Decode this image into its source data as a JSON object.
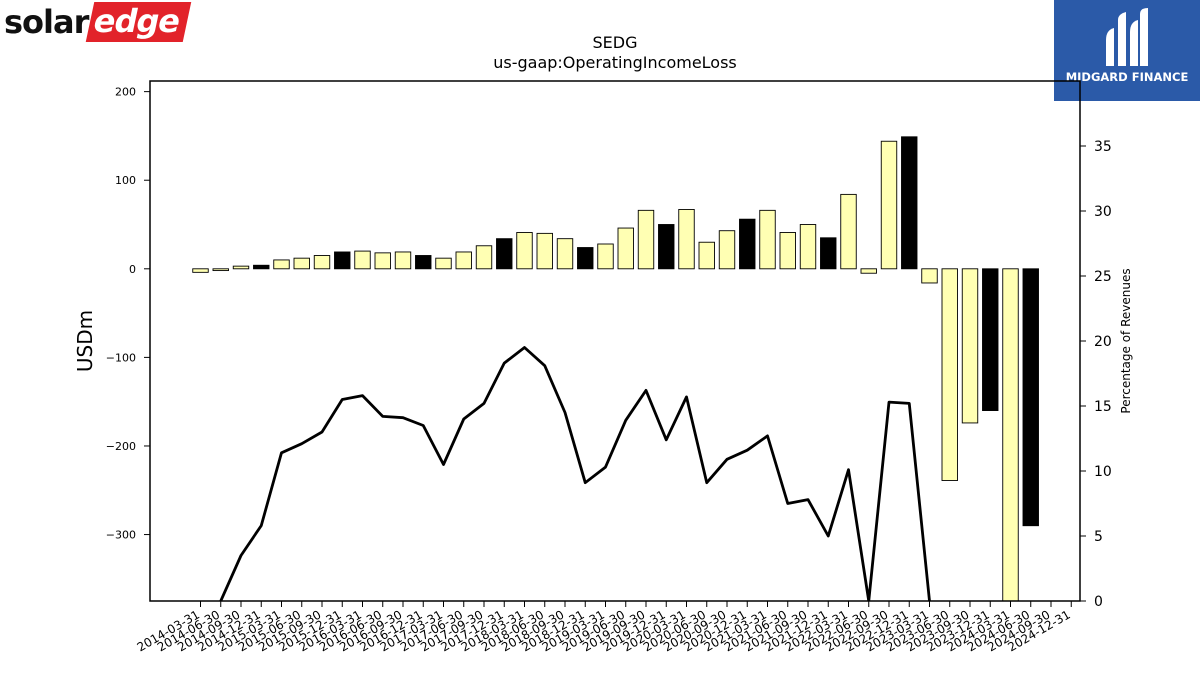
{
  "branding": {
    "left_logo_part1": "solar",
    "left_logo_part2": "edge",
    "right_logo_text": "MIDGARD FINANCE",
    "left_logo_red": "#e2232a",
    "right_logo_blue": "#2b5aa8"
  },
  "chart_data": {
    "type": "bar",
    "title": "SEDG",
    "subtitle": "us-gaap:OperatingIncomeLoss",
    "ylabel": "USDm",
    "y2label": "Percentage of Revenues",
    "ylim": [
      -375,
      212
    ],
    "y2lim": [
      0,
      40
    ],
    "yticks": [
      200,
      100,
      0,
      -100,
      -200,
      -300
    ],
    "y2ticks": [
      0,
      5,
      10,
      15,
      20,
      25,
      30,
      35
    ],
    "colors": {
      "bar_default": "#ffffb3",
      "bar_q4": "#000000",
      "line": "#000000"
    },
    "categories": [
      "2014-03-31",
      "2014-06-30",
      "2014-09-30",
      "2014-12-31",
      "2015-03-31",
      "2015-06-30",
      "2015-09-30",
      "2015-12-31",
      "2016-03-31",
      "2016-06-30",
      "2016-09-30",
      "2016-12-31",
      "2017-03-31",
      "2017-06-30",
      "2017-09-30",
      "2017-12-31",
      "2018-03-31",
      "2018-06-30",
      "2018-09-30",
      "2018-12-31",
      "2019-03-31",
      "2019-06-30",
      "2019-09-30",
      "2019-12-31",
      "2020-03-31",
      "2020-06-30",
      "2020-09-30",
      "2020-12-31",
      "2021-03-31",
      "2021-06-30",
      "2021-09-30",
      "2021-12-31",
      "2022-03-31",
      "2022-06-30",
      "2022-09-30",
      "2022-12-31",
      "2023-03-31",
      "2023-06-30",
      "2023-09-30",
      "2023-12-31",
      "2024-03-31",
      "2024-06-30",
      "2024-09-30",
      "2024-12-31"
    ],
    "bar_values": [
      -4,
      -2,
      3,
      4,
      10,
      12,
      15,
      19,
      20,
      18,
      19,
      15,
      12,
      19,
      26,
      34,
      41,
      40,
      34,
      24,
      28,
      46,
      66,
      50,
      67,
      30,
      43,
      56,
      66,
      41,
      50,
      35,
      84,
      -5,
      144,
      149,
      -16,
      -239,
      -174,
      -160,
      -375,
      -290
    ],
    "bar_categories": [
      "2014-03-31",
      "2014-06-30",
      "2014-09-30",
      "2014-12-31",
      "2015-03-31",
      "2015-06-30",
      "2015-09-30",
      "2015-12-31",
      "2016-03-31",
      "2016-06-30",
      "2016-09-30",
      "2016-12-31",
      "2017-03-31",
      "2017-06-30",
      "2017-09-30",
      "2017-12-31",
      "2018-03-31",
      "2018-06-30",
      "2018-09-30",
      "2018-12-31",
      "2019-03-31",
      "2019-06-30",
      "2019-09-30",
      "2019-12-31",
      "2020-03-31",
      "2020-06-30",
      "2020-09-30",
      "2020-12-31",
      "2021-03-31",
      "2021-06-30",
      "2021-09-30",
      "2021-12-31",
      "2022-03-31",
      "2022-06-30",
      "2022-09-30",
      "2022-12-31",
      "2023-03-31",
      "2023-06-30",
      "2023-09-30",
      "2023-12-31",
      "2024-03-31",
      "2024-06-30"
    ],
    "bar_fill": [
      "default",
      "default",
      "default",
      "q4",
      "default",
      "default",
      "default",
      "q4",
      "default",
      "default",
      "default",
      "q4",
      "default",
      "default",
      "default",
      "q4",
      "default",
      "default",
      "default",
      "q4",
      "default",
      "default",
      "default",
      "q4",
      "default",
      "default",
      "default",
      "q4",
      "default",
      "default",
      "default",
      "q4",
      "default",
      "default",
      "default",
      "q4",
      "default",
      "default",
      "default",
      "q4",
      "default",
      "q4"
    ],
    "line_categories": [
      "2014-06-30",
      "2014-09-30",
      "2014-12-31",
      "2015-03-31",
      "2015-06-30",
      "2015-09-30",
      "2015-12-31",
      "2016-03-31",
      "2016-06-30",
      "2016-09-30",
      "2016-12-31",
      "2017-03-31",
      "2017-06-30",
      "2017-09-30",
      "2017-12-31",
      "2018-03-31",
      "2018-06-30",
      "2018-09-30",
      "2018-12-31",
      "2019-03-31",
      "2019-06-30",
      "2019-09-30",
      "2019-12-31",
      "2020-03-31",
      "2020-06-30",
      "2020-09-30",
      "2020-12-31",
      "2021-03-31",
      "2021-06-30",
      "2021-09-30",
      "2021-12-31",
      "2022-03-31",
      "2022-06-30",
      "2022-09-30",
      "2022-12-31",
      "2023-03-31",
      "2023-06-30"
    ],
    "line_values": [
      0,
      3.5,
      5.8,
      11.4,
      12.1,
      13,
      15.5,
      15.8,
      14.2,
      14.1,
      13.5,
      10.5,
      14,
      15.2,
      18.3,
      19.5,
      18.1,
      14.5,
      9.1,
      10.3,
      13.9,
      16.2,
      12.4,
      15.7,
      9.1,
      10.9,
      11.6,
      12.7,
      7.5,
      7.8,
      5,
      10.1,
      0,
      15.3,
      15.2,
      0
    ]
  }
}
